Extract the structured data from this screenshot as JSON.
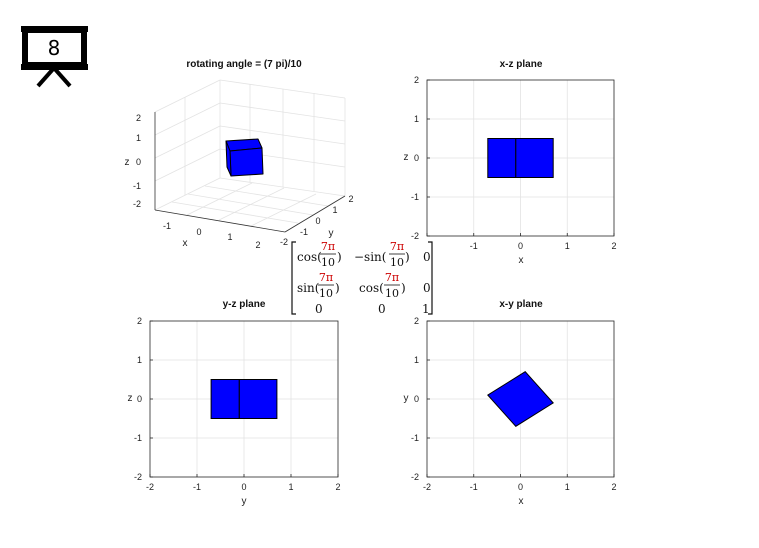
{
  "slide_number": "8",
  "colors": {
    "face": "#0000ff",
    "edge": "#000000",
    "grid": "#e3e3e3",
    "box": "#262626",
    "accent_red": "#cc0000"
  },
  "icon": "projector-screen-icon",
  "plot3d": {
    "title": "rotating angle = (7 pi)/10",
    "xlabel": "x",
    "ylabel": "y",
    "zlabel": "z",
    "xticks": [
      "-1",
      "0",
      "1",
      "2"
    ],
    "yticks": [
      "-2",
      "-1",
      "0",
      "1",
      "2"
    ],
    "zticks": [
      "2",
      "1",
      "0",
      "-1",
      "-2"
    ]
  },
  "xz": {
    "title": "x-z plane",
    "xlabel": "x",
    "ylabel": "z",
    "xticks": [
      "-2",
      "-1",
      "0",
      "1",
      "2"
    ],
    "yticks": [
      "2",
      "1",
      "0",
      "-1",
      "-2"
    ]
  },
  "yz": {
    "title": "y-z plane",
    "xlabel": "y",
    "ylabel": "z",
    "xticks": [
      "-2",
      "-1",
      "0",
      "1",
      "2"
    ],
    "yticks": [
      "2",
      "1",
      "0",
      "-1",
      "-2"
    ]
  },
  "xy": {
    "title": "x-y plane",
    "xlabel": "x",
    "ylabel": "y",
    "xticks": [
      "-2",
      "-1",
      "0",
      "1",
      "2"
    ],
    "yticks": [
      "2",
      "1",
      "0",
      "-1",
      "-2"
    ]
  },
  "matrix": {
    "cos": "cos(",
    "sin": "sin(",
    "msin": "−sin(",
    "num": "7π",
    "den": "10",
    "close": ")",
    "zero": "0",
    "one": "1"
  },
  "chart_data": [
    {
      "type": "scatter",
      "title": "x-z plane",
      "xlim": [
        -2,
        2
      ],
      "ylim": [
        -2,
        2
      ],
      "grid": true,
      "polygons": [
        [
          [
            -0.7,
            -0.5
          ],
          [
            -0.1,
            -0.5
          ],
          [
            -0.1,
            0.5
          ],
          [
            -0.7,
            0.5
          ]
        ],
        [
          [
            -0.1,
            -0.5
          ],
          [
            0.7,
            -0.5
          ],
          [
            0.7,
            0.5
          ],
          [
            -0.1,
            0.5
          ]
        ]
      ]
    },
    {
      "type": "scatter",
      "title": "y-z plane",
      "xlim": [
        -2,
        2
      ],
      "ylim": [
        -2,
        2
      ],
      "grid": true,
      "polygons": [
        [
          [
            -0.7,
            -0.5
          ],
          [
            -0.1,
            -0.5
          ],
          [
            -0.1,
            0.5
          ],
          [
            -0.7,
            0.5
          ]
        ],
        [
          [
            -0.1,
            -0.5
          ],
          [
            0.7,
            -0.5
          ],
          [
            0.7,
            0.5
          ],
          [
            -0.1,
            0.5
          ]
        ]
      ]
    },
    {
      "type": "scatter",
      "title": "x-y plane",
      "xlim": [
        -2,
        2
      ],
      "ylim": [
        -2,
        2
      ],
      "grid": true,
      "polygons": [
        [
          [
            -0.7,
            0.1
          ],
          [
            0.1,
            0.7
          ],
          [
            0.7,
            -0.1
          ],
          [
            -0.1,
            -0.7
          ]
        ]
      ]
    }
  ]
}
